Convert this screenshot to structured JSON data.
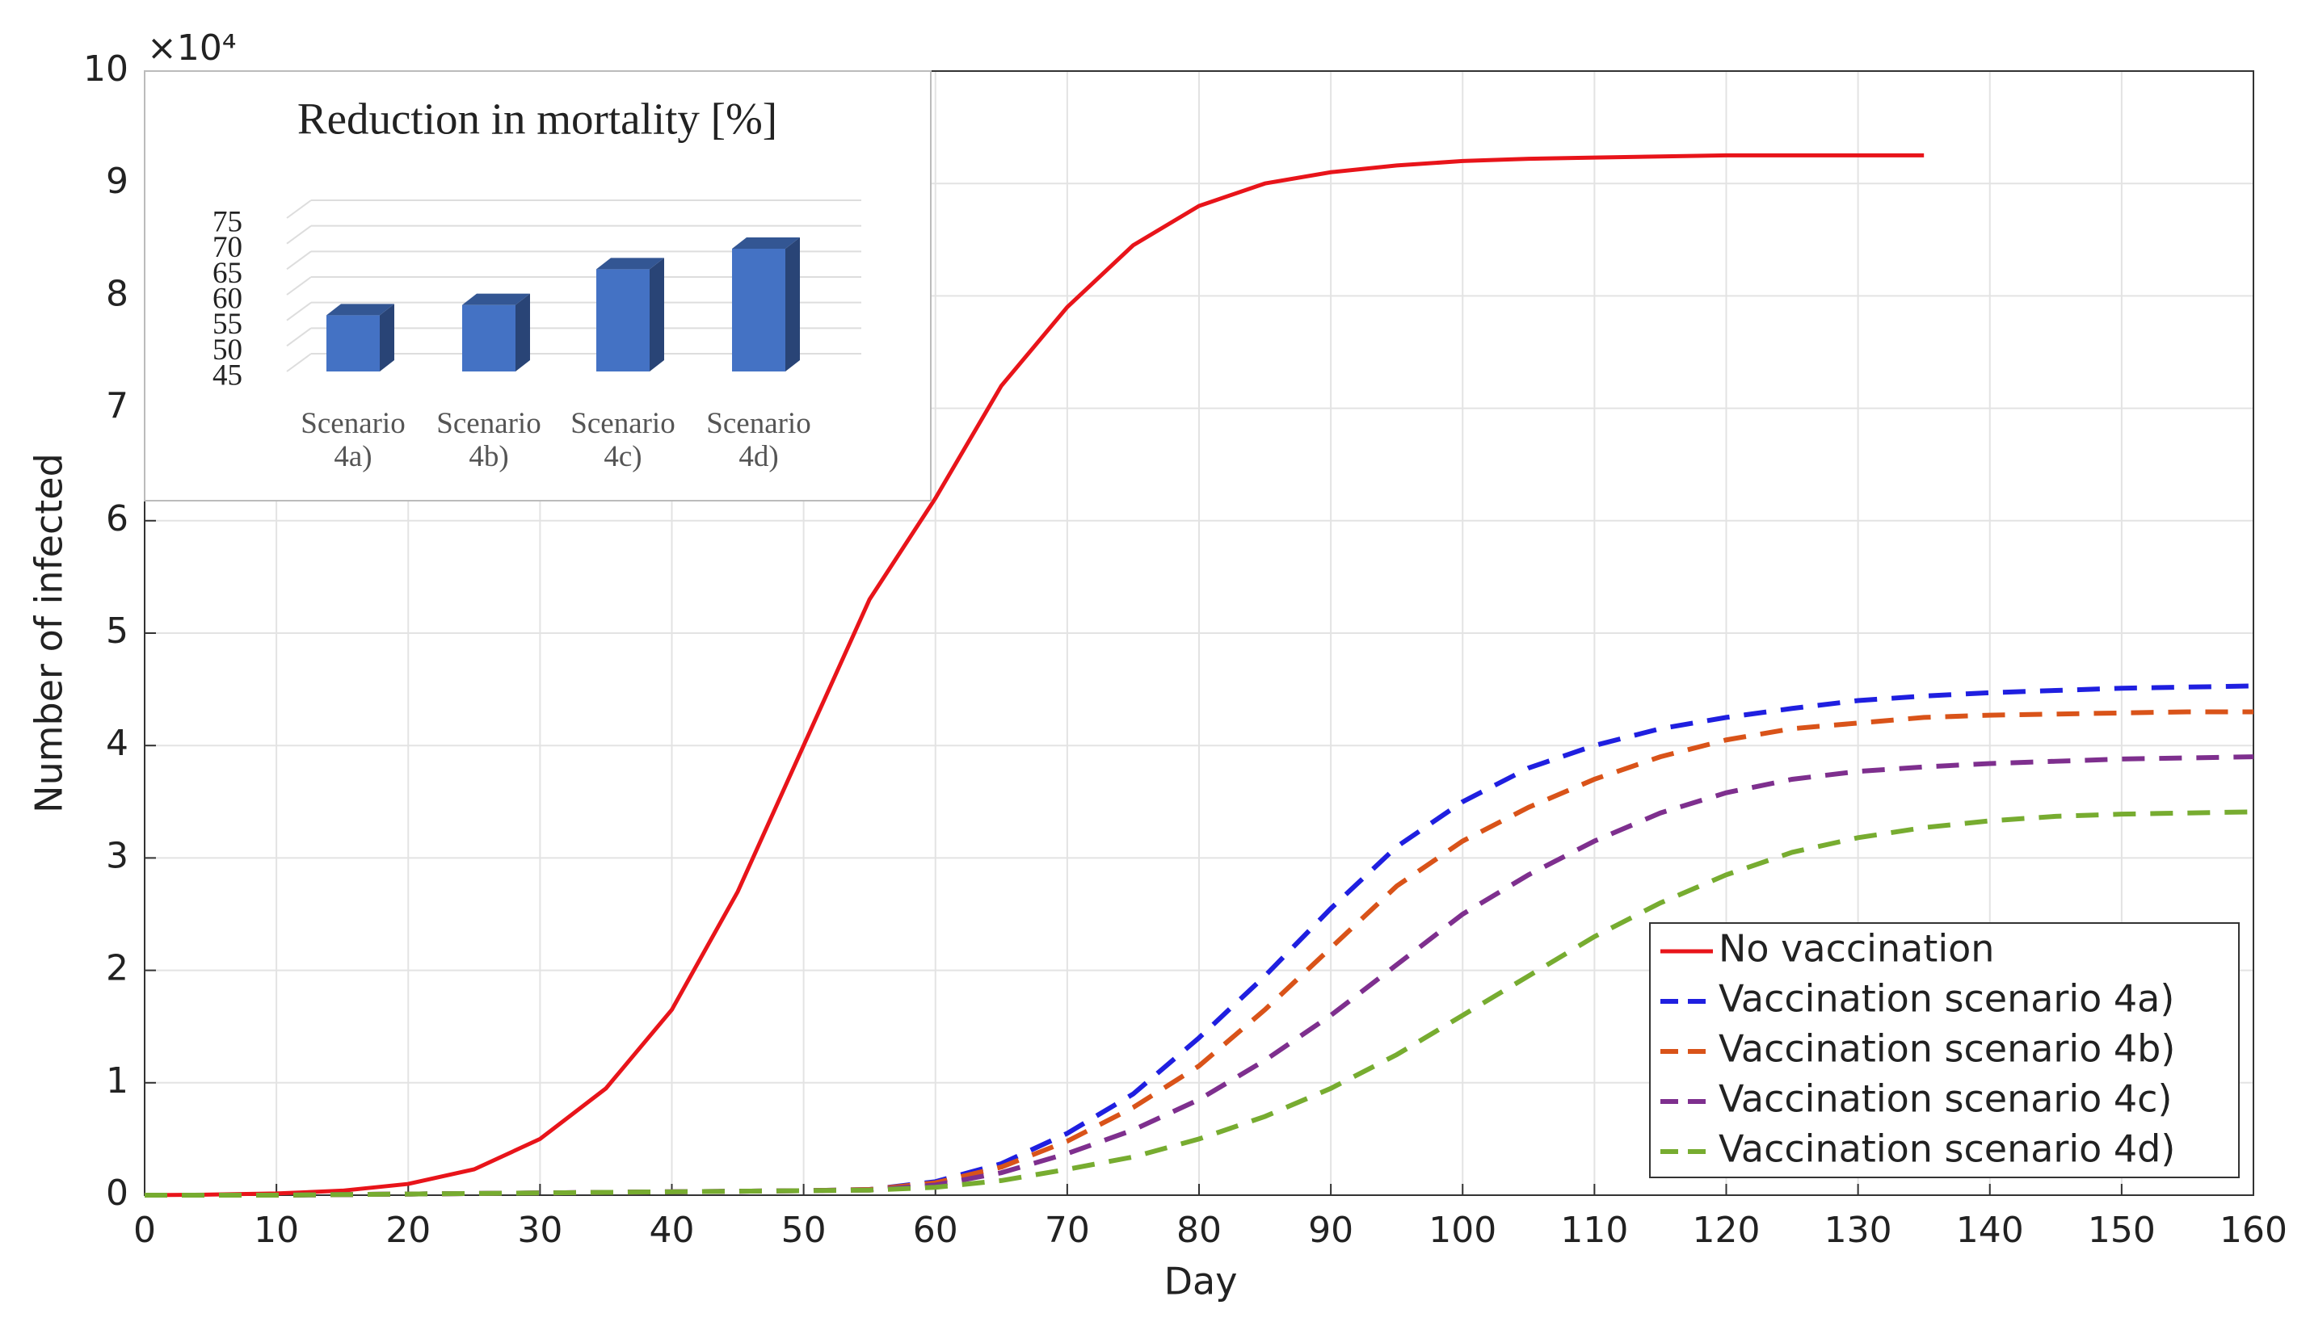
{
  "chart_data": [
    {
      "type": "line",
      "x_label": "Day",
      "y_label": "Number of infected",
      "y_multiplier": "×10⁴",
      "x": [
        0,
        5,
        10,
        15,
        20,
        25,
        30,
        35,
        40,
        45,
        50,
        55,
        60,
        65,
        70,
        75,
        80,
        85,
        90,
        95,
        100,
        105,
        110,
        115,
        120,
        125,
        130,
        135,
        140,
        145,
        150,
        155,
        160
      ],
      "xlim": [
        0,
        160
      ],
      "xticks": [
        0,
        10,
        20,
        30,
        40,
        50,
        60,
        70,
        80,
        90,
        100,
        110,
        120,
        130,
        140,
        150,
        160
      ],
      "ylim": [
        0,
        100000
      ],
      "yticks": [
        {
          "value": 0,
          "label": "0"
        },
        {
          "value": 10000,
          "label": "1"
        },
        {
          "value": 20000,
          "label": "2"
        },
        {
          "value": 30000,
          "label": "3"
        },
        {
          "value": 40000,
          "label": "4"
        },
        {
          "value": 50000,
          "label": "5"
        },
        {
          "value": 60000,
          "label": "6"
        },
        {
          "value": 70000,
          "label": "7"
        },
        {
          "value": 80000,
          "label": "8"
        },
        {
          "value": 90000,
          "label": "9"
        },
        {
          "value": 100000,
          "label": "10"
        }
      ],
      "grid": true,
      "legend": "lower right",
      "series": [
        {
          "name": "No vaccination",
          "color": "#e8141a",
          "dashed": false,
          "values": [
            0,
            50,
            150,
            400,
            1000,
            2300,
            5000,
            9500,
            16500,
            27000,
            40000,
            53000,
            62000,
            72000,
            79000,
            84500,
            88000,
            90000,
            91000,
            91600,
            92000,
            92200,
            92300,
            92400,
            92500,
            92500,
            92500,
            92500,
            null,
            null,
            null,
            null,
            null
          ]
        },
        {
          "name": "Vaccination scenario 4a)",
          "color": "#1f1fe0",
          "dashed": true,
          "values": [
            0,
            0,
            0,
            50,
            100,
            150,
            200,
            250,
            300,
            350,
            400,
            500,
            1200,
            2800,
            5500,
            9000,
            14000,
            19500,
            25500,
            31000,
            35000,
            38000,
            40000,
            41500,
            42500,
            43300,
            44000,
            44400,
            44700,
            44900,
            45100,
            45200,
            45300
          ]
        },
        {
          "name": "Vaccination scenario 4b)",
          "color": "#d95319",
          "dashed": true,
          "values": [
            0,
            0,
            0,
            50,
            100,
            150,
            200,
            250,
            300,
            350,
            400,
            500,
            1100,
            2500,
            4800,
            7800,
            11500,
            16500,
            22000,
            27500,
            31500,
            34500,
            37000,
            39000,
            40500,
            41500,
            42000,
            42500,
            42700,
            42800,
            42900,
            43000,
            43000
          ]
        },
        {
          "name": "Vaccination scenario 4c)",
          "color": "#7e2f8e",
          "dashed": true,
          "values": [
            0,
            0,
            0,
            50,
            100,
            150,
            200,
            250,
            300,
            350,
            400,
            450,
            900,
            2000,
            3700,
            5800,
            8500,
            12000,
            16000,
            20500,
            25000,
            28500,
            31500,
            34000,
            35800,
            37000,
            37700,
            38100,
            38400,
            38600,
            38800,
            38900,
            39000
          ]
        },
        {
          "name": "Vaccination scenario 4d)",
          "color": "#77ac30",
          "dashed": true,
          "values": [
            0,
            0,
            0,
            50,
            100,
            150,
            200,
            250,
            300,
            350,
            400,
            450,
            700,
            1300,
            2300,
            3400,
            5000,
            7000,
            9500,
            12500,
            16000,
            19500,
            23000,
            26000,
            28500,
            30500,
            31800,
            32700,
            33300,
            33700,
            33900,
            34000,
            34100
          ]
        }
      ]
    },
    {
      "type": "bar",
      "title": "Reduction in mortality [%]",
      "categories": [
        "Scenario 4a)",
        "Scenario 4b)",
        "Scenario 4c)",
        "Scenario 4d)"
      ],
      "values": [
        56,
        58,
        65,
        69
      ],
      "color": "#4472c4",
      "ylim": [
        45,
        75
      ],
      "yticks": [
        45,
        50,
        55,
        60,
        65,
        70,
        75
      ],
      "grid": true
    }
  ]
}
